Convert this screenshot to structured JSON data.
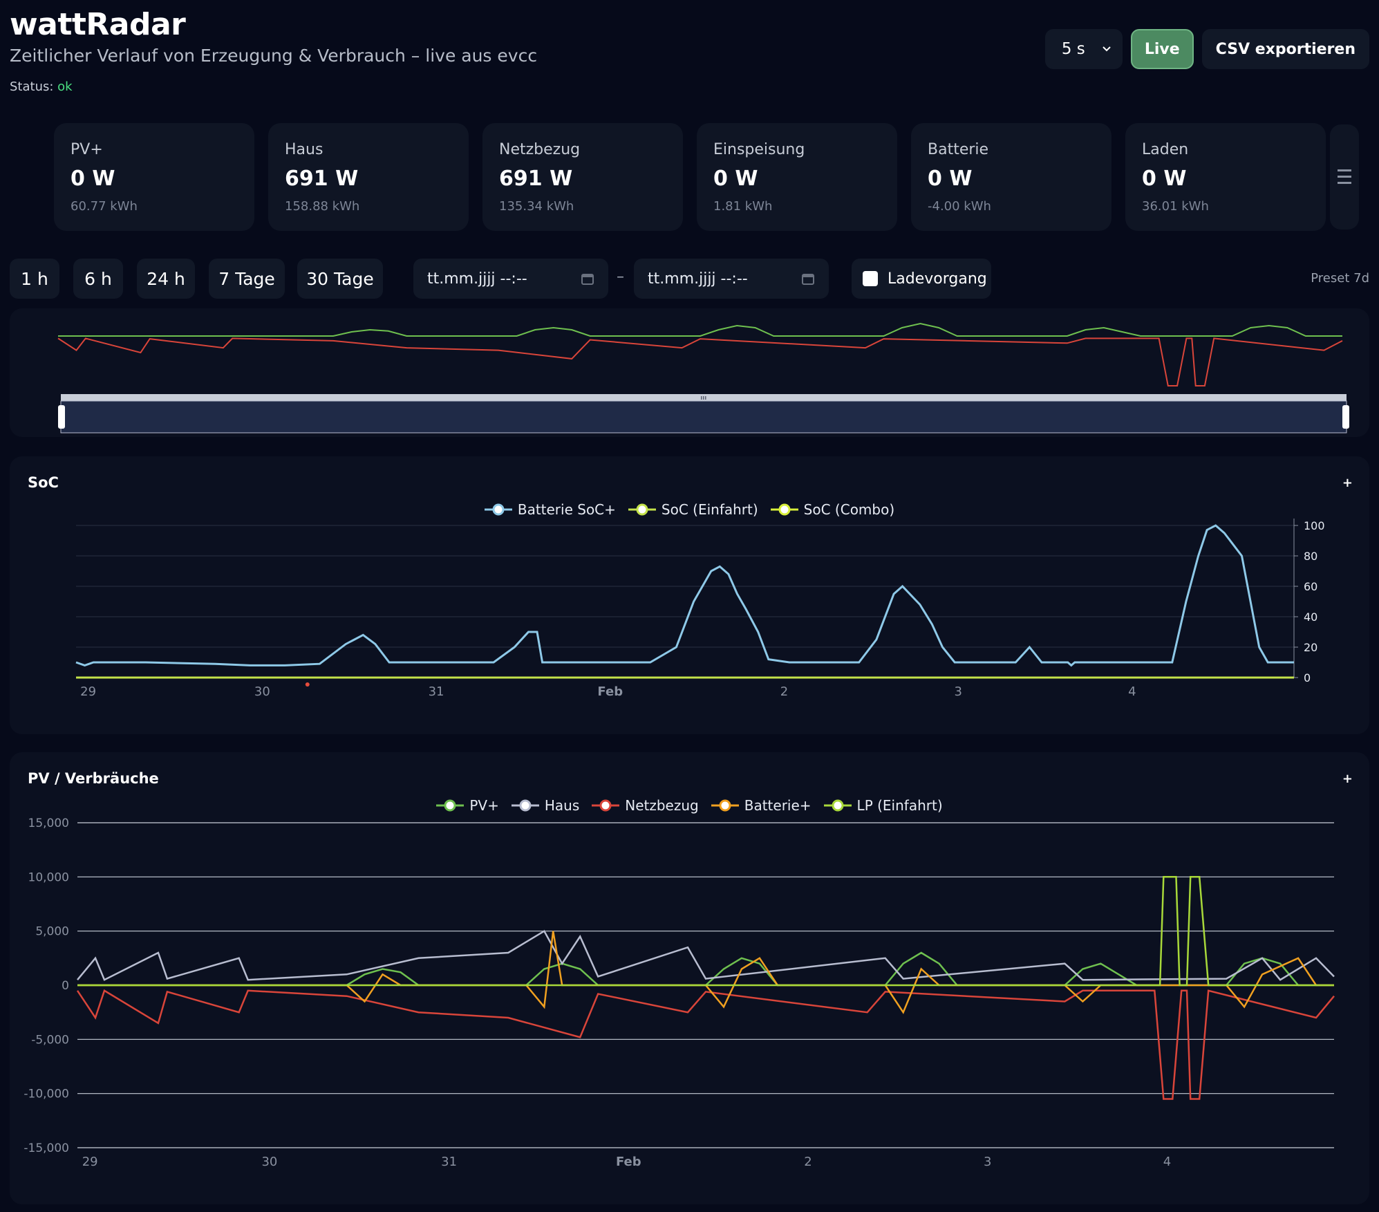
{
  "header": {
    "title": "wattRadar",
    "subtitle": "Zeitlicher Verlauf von Erzeugung & Verbrauch – live aus evcc",
    "status_label": "Status:",
    "status_value": "ok"
  },
  "top_controls": {
    "interval_value": "5 s",
    "live_label": "Live",
    "csv_label": "CSV exportieren"
  },
  "kpis": [
    {
      "label": "PV+",
      "value": "0 W",
      "sub": "60.77 kWh"
    },
    {
      "label": "Haus",
      "value": "691 W",
      "sub": "158.88 kWh"
    },
    {
      "label": "Netzbezug",
      "value": "691 W",
      "sub": "135.34 kWh"
    },
    {
      "label": "Einspeisung",
      "value": "0 W",
      "sub": "1.81 kWh"
    },
    {
      "label": "Batterie",
      "value": "0 W",
      "sub": "-4.00 kWh"
    },
    {
      "label": "Laden",
      "value": "0 W",
      "sub": "36.01 kWh"
    }
  ],
  "range": {
    "presets": [
      "1 h",
      "6 h",
      "24 h",
      "7 Tage",
      "30 Tage"
    ],
    "from_placeholder": "tt.mm.jjjj  --:--",
    "to_placeholder": "tt.mm.jjjj  --:--",
    "separator": "–",
    "ladevorgang_label": "Ladevorgang",
    "preset_info": "Preset 7d"
  },
  "colors": {
    "pv": "#6fc04f",
    "haus": "#b8bdd0",
    "netz": "#d9453a",
    "batterie": "#f0a020",
    "lp": "#a8d83a",
    "soc_batt": "#8ec9e8",
    "soc_ev": "#c3e24a"
  },
  "icons": {
    "select_chevron": "chevron-down-icon",
    "date_picker": "calendar-icon",
    "menu": "hamburger-icon",
    "slider_grip": "grip-icon"
  },
  "chart_data": [
    {
      "type": "line",
      "title": "SoC",
      "x_ticks": [
        "29",
        "30",
        "31",
        "Feb",
        "2",
        "3",
        "4"
      ],
      "ylim": [
        0,
        100
      ],
      "y_ticks": [
        0,
        20,
        40,
        60,
        80,
        100
      ],
      "series": [
        {
          "name": "Batterie SoC+",
          "color": "#8ec9e8",
          "points": [
            [
              0,
              10
            ],
            [
              0.05,
              8
            ],
            [
              0.1,
              10
            ],
            [
              0.4,
              10
            ],
            [
              0.8,
              9
            ],
            [
              1.0,
              8
            ],
            [
              1.2,
              8
            ],
            [
              1.4,
              9
            ],
            [
              1.55,
              22
            ],
            [
              1.65,
              28
            ],
            [
              1.72,
              22
            ],
            [
              1.8,
              10
            ],
            [
              2.2,
              10
            ],
            [
              2.4,
              10
            ],
            [
              2.52,
              20
            ],
            [
              2.6,
              30
            ],
            [
              2.65,
              30
            ],
            [
              2.68,
              10
            ],
            [
              3.0,
              10
            ],
            [
              3.3,
              10
            ],
            [
              3.45,
              20
            ],
            [
              3.55,
              50
            ],
            [
              3.65,
              70
            ],
            [
              3.7,
              73
            ],
            [
              3.75,
              68
            ],
            [
              3.8,
              55
            ],
            [
              3.85,
              45
            ],
            [
              3.92,
              30
            ],
            [
              3.98,
              12
            ],
            [
              4.1,
              10
            ],
            [
              4.5,
              10
            ],
            [
              4.6,
              25
            ],
            [
              4.7,
              55
            ],
            [
              4.75,
              60
            ],
            [
              4.85,
              48
            ],
            [
              4.92,
              35
            ],
            [
              4.98,
              20
            ],
            [
              5.05,
              10
            ],
            [
              5.4,
              10
            ],
            [
              5.48,
              20
            ],
            [
              5.55,
              10
            ],
            [
              5.7,
              10
            ],
            [
              5.72,
              8
            ],
            [
              5.74,
              10
            ],
            [
              6.2,
              10
            ],
            [
              6.3,
              10
            ],
            [
              6.38,
              50
            ],
            [
              6.45,
              80
            ],
            [
              6.5,
              97
            ],
            [
              6.55,
              100
            ],
            [
              6.6,
              95
            ],
            [
              6.7,
              80
            ],
            [
              6.75,
              50
            ],
            [
              6.8,
              20
            ],
            [
              6.85,
              10
            ],
            [
              7.0,
              10
            ]
          ]
        },
        {
          "name": "SoC (Einfahrt)",
          "color": "#c3e24a",
          "points": [
            [
              0,
              0
            ],
            [
              7.0,
              0
            ]
          ]
        },
        {
          "name": "SoC (Combo)",
          "color": "#d8ef3a",
          "points": [
            [
              0,
              0
            ],
            [
              7.0,
              0
            ]
          ]
        }
      ]
    },
    {
      "type": "line",
      "title": "PV / Verbräuche",
      "x_ticks": [
        "29",
        "30",
        "31",
        "Feb",
        "2",
        "3",
        "4"
      ],
      "ylim": [
        -15000,
        15000
      ],
      "y_ticks": [
        15000,
        10000,
        5000,
        0,
        -5000,
        -10000,
        -15000
      ],
      "y_tick_labels": [
        "15,000",
        "10,000",
        "5,000",
        "0",
        "-5,000",
        "-10,000",
        "-15,000"
      ],
      "series": [
        {
          "name": "PV+",
          "color": "#6fc04f",
          "points": [
            [
              0,
              0
            ],
            [
              1.5,
              0
            ],
            [
              1.6,
              1000
            ],
            [
              1.7,
              1500
            ],
            [
              1.8,
              1200
            ],
            [
              1.9,
              0
            ],
            [
              2.5,
              0
            ],
            [
              2.6,
              1500
            ],
            [
              2.7,
              2000
            ],
            [
              2.8,
              1500
            ],
            [
              2.9,
              0
            ],
            [
              3.5,
              0
            ],
            [
              3.6,
              1500
            ],
            [
              3.7,
              2500
            ],
            [
              3.8,
              2000
            ],
            [
              3.9,
              0
            ],
            [
              4.5,
              0
            ],
            [
              4.6,
              2000
            ],
            [
              4.7,
              3000
            ],
            [
              4.8,
              2000
            ],
            [
              4.9,
              0
            ],
            [
              5.5,
              0
            ],
            [
              5.6,
              1500
            ],
            [
              5.7,
              2000
            ],
            [
              5.8,
              1000
            ],
            [
              5.9,
              0
            ],
            [
              6.4,
              0
            ],
            [
              6.5,
              2000
            ],
            [
              6.6,
              2500
            ],
            [
              6.7,
              2000
            ],
            [
              6.8,
              0
            ],
            [
              7.0,
              0
            ]
          ]
        },
        {
          "name": "Haus",
          "color": "#b8bdd0",
          "points": [
            [
              0,
              500
            ],
            [
              0.1,
              2500
            ],
            [
              0.15,
              500
            ],
            [
              0.45,
              3000
            ],
            [
              0.5,
              600
            ],
            [
              0.9,
              2500
            ],
            [
              0.95,
              500
            ],
            [
              1.5,
              1000
            ],
            [
              1.9,
              2500
            ],
            [
              2.4,
              3000
            ],
            [
              2.6,
              5000
            ],
            [
              2.7,
              2000
            ],
            [
              2.8,
              4500
            ],
            [
              2.9,
              800
            ],
            [
              3.4,
              3500
            ],
            [
              3.5,
              600
            ],
            [
              4.5,
              2500
            ],
            [
              4.6,
              600
            ],
            [
              5.5,
              2000
            ],
            [
              5.6,
              500
            ],
            [
              6.4,
              600
            ],
            [
              6.6,
              2500
            ],
            [
              6.7,
              500
            ],
            [
              6.9,
              2500
            ],
            [
              7.0,
              800
            ]
          ]
        },
        {
          "name": "Netzbezug",
          "color": "#d9453a",
          "points": [
            [
              0,
              -500
            ],
            [
              0.1,
              -3000
            ],
            [
              0.15,
              -500
            ],
            [
              0.45,
              -3500
            ],
            [
              0.5,
              -600
            ],
            [
              0.9,
              -2500
            ],
            [
              0.95,
              -500
            ],
            [
              1.5,
              -1000
            ],
            [
              1.9,
              -2500
            ],
            [
              2.4,
              -3000
            ],
            [
              2.8,
              -4800
            ],
            [
              2.9,
              -800
            ],
            [
              3.4,
              -2500
            ],
            [
              3.5,
              -600
            ],
            [
              4.4,
              -2500
            ],
            [
              4.5,
              -600
            ],
            [
              5.5,
              -1500
            ],
            [
              5.6,
              -500
            ],
            [
              6.0,
              -500
            ],
            [
              6.05,
              -10500
            ],
            [
              6.1,
              -10500
            ],
            [
              6.15,
              -500
            ],
            [
              6.18,
              -500
            ],
            [
              6.2,
              -10500
            ],
            [
              6.25,
              -10500
            ],
            [
              6.3,
              -500
            ],
            [
              6.9,
              -3000
            ],
            [
              7.0,
              -1000
            ]
          ]
        },
        {
          "name": "Batterie+",
          "color": "#f0a020",
          "points": [
            [
              0,
              0
            ],
            [
              1.5,
              0
            ],
            [
              1.6,
              -1500
            ],
            [
              1.7,
              1000
            ],
            [
              1.8,
              0
            ],
            [
              2.5,
              0
            ],
            [
              2.6,
              -2000
            ],
            [
              2.65,
              5000
            ],
            [
              2.7,
              0
            ],
            [
              3.5,
              0
            ],
            [
              3.6,
              -2000
            ],
            [
              3.7,
              1500
            ],
            [
              3.8,
              2500
            ],
            [
              3.9,
              0
            ],
            [
              4.5,
              0
            ],
            [
              4.6,
              -2500
            ],
            [
              4.7,
              1500
            ],
            [
              4.8,
              0
            ],
            [
              5.5,
              0
            ],
            [
              5.6,
              -1500
            ],
            [
              5.7,
              0
            ],
            [
              6.4,
              0
            ],
            [
              6.5,
              -2000
            ],
            [
              6.6,
              1000
            ],
            [
              6.8,
              2500
            ],
            [
              6.9,
              0
            ],
            [
              7.0,
              0
            ]
          ]
        },
        {
          "name": "LP (Einfahrt)",
          "color": "#a8d83a",
          "points": [
            [
              0,
              0
            ],
            [
              6.03,
              0
            ],
            [
              6.05,
              10000
            ],
            [
              6.12,
              10000
            ],
            [
              6.14,
              0
            ],
            [
              6.18,
              0
            ],
            [
              6.2,
              10000
            ],
            [
              6.25,
              10000
            ],
            [
              6.3,
              0
            ],
            [
              7.0,
              0
            ]
          ]
        }
      ]
    }
  ]
}
